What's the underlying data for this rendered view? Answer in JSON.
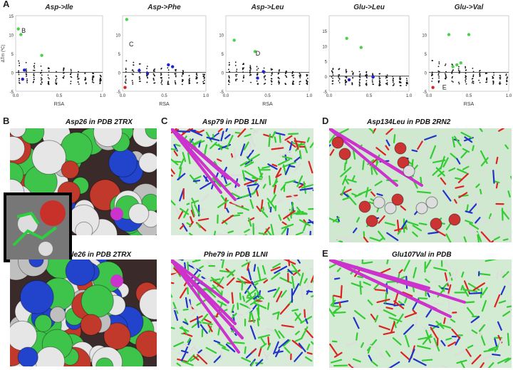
{
  "panel_letters": {
    "A": "A",
    "B": "B",
    "C": "C",
    "D": "D",
    "E": "E"
  },
  "chart_data": [
    {
      "type": "scatter",
      "title": "Asp->Ile",
      "xlabel": "RSA",
      "ylabel": "ΔTm (ºC)",
      "xlim": [
        0,
        1.0
      ],
      "ylim": [
        -5,
        15
      ],
      "xticks": [
        "0.0",
        "0.5",
        "1.0"
      ],
      "yticks": [
        "15",
        "10",
        "5",
        "0",
        "-5"
      ],
      "annotations": [
        {
          "text": "B",
          "x": 0.05,
          "y": 11
        }
      ],
      "series": [
        {
          "color": "#4dd14d",
          "points": [
            [
              0.03,
              11.5
            ],
            [
              0.06,
              10
            ],
            [
              0.3,
              4.5
            ]
          ]
        },
        {
          "color": "#2222cc",
          "points": [
            [
              0.08,
              -1.8
            ],
            [
              0.1,
              0.6
            ]
          ]
        }
      ]
    },
    {
      "type": "scatter",
      "title": "Asp->Phe",
      "xlabel": "RSA",
      "ylabel": "",
      "xlim": [
        0,
        1.0
      ],
      "ylim": [
        -5,
        15
      ],
      "xticks": [
        "0.0",
        "0.5",
        "1.0"
      ],
      "yticks": [
        "10",
        "5",
        "0",
        "-5"
      ],
      "annotations": [
        {
          "text": "C",
          "x": 0.06,
          "y": 7.5
        }
      ],
      "series": [
        {
          "color": "#4dd14d",
          "points": [
            [
              0.05,
              14
            ]
          ]
        },
        {
          "color": "#2222cc",
          "points": [
            [
              0.2,
              0.5
            ],
            [
              0.55,
              2
            ],
            [
              0.6,
              1.5
            ],
            [
              0.3,
              -0.3
            ]
          ]
        },
        {
          "color": "#dd2222",
          "points": [
            [
              0.03,
              -4
            ]
          ]
        }
      ]
    },
    {
      "type": "scatter",
      "title": "Asp->Leu",
      "xlabel": "RSA",
      "ylabel": "",
      "xlim": [
        0,
        1.0
      ],
      "ylim": [
        -5,
        15
      ],
      "xticks": [
        "0.0",
        "0.5",
        "1.0"
      ],
      "yticks": [
        "10",
        "5",
        "0",
        "-5"
      ],
      "annotations": [
        {
          "text": "D",
          "x": 0.34,
          "y": 5
        }
      ],
      "series": [
        {
          "color": "#4dd14d",
          "points": [
            [
              0.1,
              8.5
            ],
            [
              0.35,
              5.5
            ]
          ]
        },
        {
          "color": "#2222cc",
          "points": [
            [
              0.45,
              0.2
            ],
            [
              0.38,
              -1.5
            ]
          ]
        }
      ]
    },
    {
      "type": "scatter",
      "title": "Glu->Leu",
      "xlabel": "",
      "ylabel": "",
      "xlim": [
        0,
        1.0
      ],
      "ylim": [
        -5,
        20
      ],
      "xticks": [
        "0.0",
        "0.5",
        "1.0"
      ],
      "yticks": [
        "15",
        "10",
        "5",
        "0",
        "-5"
      ],
      "annotations": [],
      "series": [
        {
          "color": "#4dd14d",
          "points": [
            [
              0.22,
              12.5
            ],
            [
              0.4,
              9.5
            ]
          ]
        },
        {
          "color": "#2222cc",
          "points": [
            [
              0.55,
              -0.3
            ],
            [
              0.25,
              -1.2
            ]
          ]
        }
      ]
    },
    {
      "type": "scatter",
      "title": "Glu->Val",
      "xlabel": "RSA",
      "ylabel": "",
      "xlim": [
        0,
        1.0
      ],
      "ylim": [
        -5,
        15
      ],
      "xticks": [
        "0.0",
        "0.5",
        "1.0"
      ],
      "yticks": [
        "10",
        "5",
        "0",
        "-5"
      ],
      "annotations": [
        {
          "text": "E",
          "x": 0.15,
          "y": -4
        }
      ],
      "series": [
        {
          "color": "#4dd14d",
          "points": [
            [
              0.25,
              10
            ],
            [
              0.5,
              10
            ],
            [
              0.35,
              2
            ],
            [
              0.4,
              2.5
            ],
            [
              0.3,
              1.5
            ]
          ]
        },
        {
          "color": "#dd2222",
          "points": [
            [
              0.05,
              -4
            ]
          ]
        }
      ]
    }
  ],
  "images": {
    "B_top": "Asp26 in PDB 2TRX",
    "B_bottom": "Ile26 in PDB 2TRX",
    "C_top": "Asp79 in PDB 1LNI",
    "C_bottom": "Phe79 in PDB 1LNI",
    "D": "Asp134Leu in PDB 2RN2",
    "E": "Glu107Val in PDB"
  },
  "colors": {
    "green": "#4dd14d",
    "blue": "#2222cc",
    "red": "#dd2222",
    "magenta": "#cc33cc"
  }
}
